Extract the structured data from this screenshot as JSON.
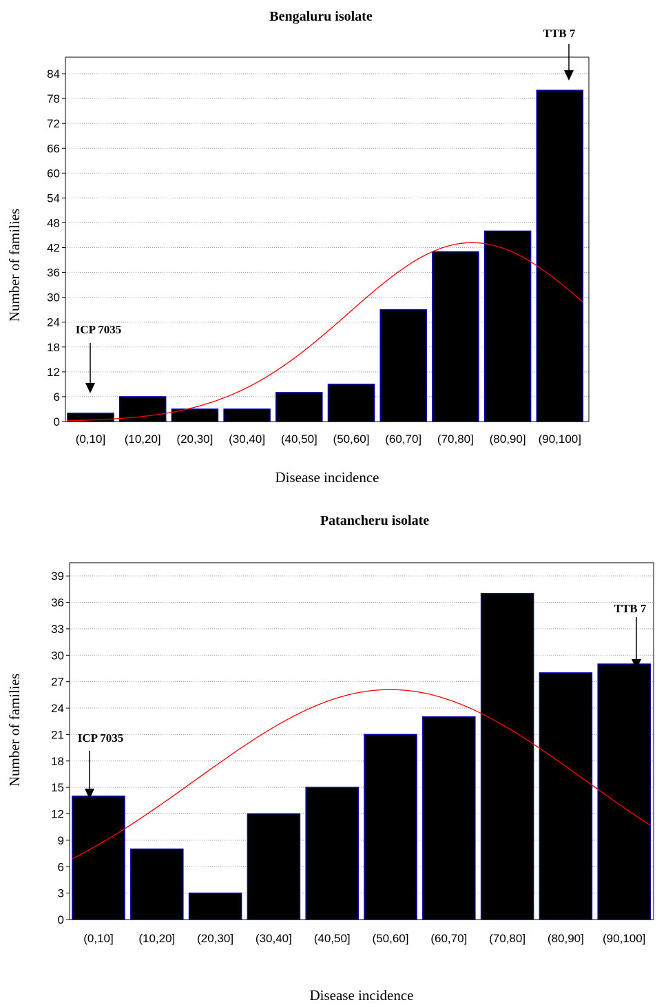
{
  "chart_data": [
    {
      "type": "bar",
      "title": "Bengaluru isolate",
      "xlabel": "Disease incidence",
      "ylabel": "Number of families",
      "categories": [
        "(0,10]",
        "(10,20]",
        "(20,30]",
        "(30,40]",
        "(40,50]",
        "(50,60]",
        "(60,70]",
        "(70,80]",
        "(80,90]",
        "(90,100]"
      ],
      "values": [
        2,
        6,
        3,
        3,
        7,
        9,
        27,
        41,
        46,
        80
      ],
      "ylim": [
        0,
        88
      ],
      "yticks": [
        0,
        6,
        12,
        18,
        24,
        30,
        36,
        42,
        48,
        54,
        60,
        66,
        72,
        78,
        84
      ],
      "grid": "horizontal dotted",
      "bar_color": "#000000",
      "bar_edge_color": "#0000aa",
      "fit_curve": {
        "type": "normal",
        "color": "#ff0000",
        "peak_value": 43.2,
        "peak_x": 78.5,
        "value_at_0": 0.2,
        "value_at_100": 26.5
      },
      "annotations": [
        {
          "label": "ICP 7035",
          "category": "(0,10]",
          "arrow": "down"
        },
        {
          "label": "TTB 7",
          "category": "(90,100]",
          "arrow": "down"
        }
      ]
    },
    {
      "type": "bar",
      "title": "Patancheru isolate",
      "xlabel": "Disease incidence",
      "ylabel": "Number of families",
      "categories": [
        "(0,10]",
        "(10,20]",
        "(20,30]",
        "(30,40]",
        "(40,50]",
        "(50,60]",
        "(60,70]",
        "(70,80]",
        "(80,90]",
        "(90,100]"
      ],
      "values": [
        14,
        8,
        3,
        12,
        15,
        21,
        23,
        37,
        28,
        29
      ],
      "ylim": [
        0,
        40.5
      ],
      "yticks": [
        0,
        3,
        6,
        9,
        12,
        15,
        18,
        21,
        24,
        27,
        30,
        33,
        36,
        39
      ],
      "grid": "horizontal dotted",
      "bar_color": "#000000",
      "bar_edge_color": "#0000aa",
      "fit_curve": {
        "type": "normal",
        "color": "#ff0000",
        "peak_value": 26.1,
        "peak_x": 55.0,
        "value_at_0": 6.7,
        "value_at_100": 10.9
      },
      "annotations": [
        {
          "label": "ICP 7035",
          "category": "(0,10]",
          "arrow": "down"
        },
        {
          "label": "TTB 7",
          "category": "(90,100]",
          "arrow": "down"
        }
      ]
    }
  ]
}
